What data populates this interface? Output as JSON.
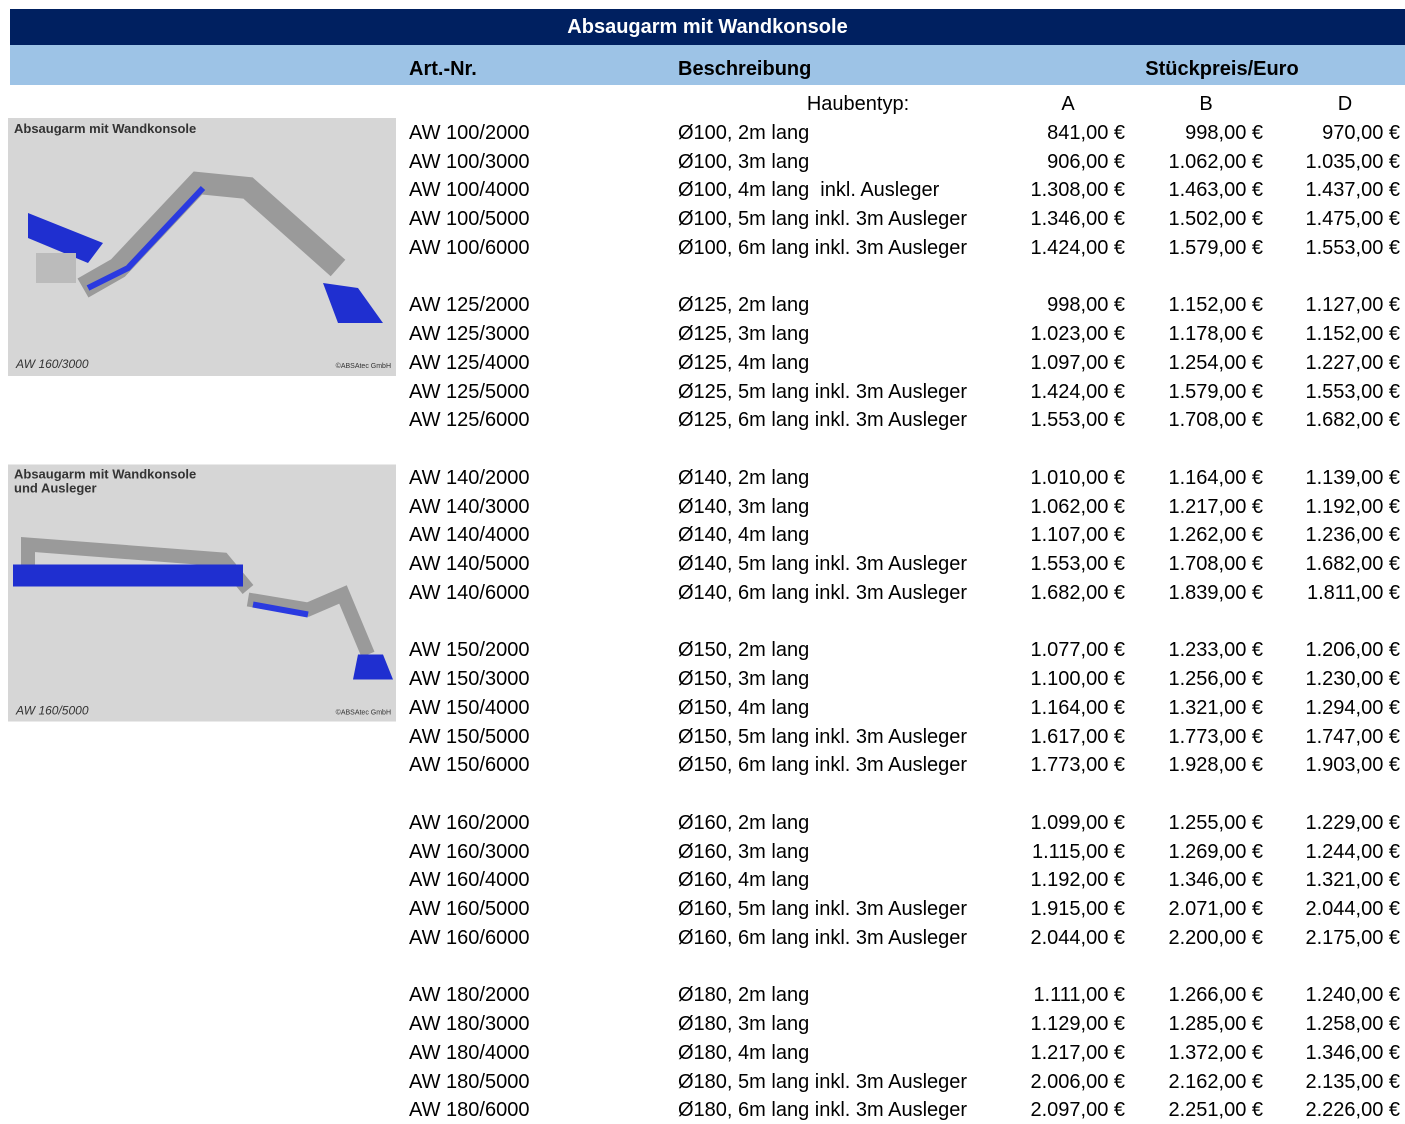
{
  "header": {
    "title": "Absaugarm mit Wandkonsole",
    "col_art": "Art.-Nr.",
    "col_desc": "Beschreibung",
    "col_price": "Stückpreis/Euro"
  },
  "hood": {
    "label": "Haubentyp:",
    "types": [
      "A",
      "B",
      "D"
    ]
  },
  "images": [
    {
      "caption": [
        "Absaugarm mit Wandkonsole"
      ],
      "model": "AW 160/3000",
      "credit": "©ABSAtec GmbH"
    },
    {
      "caption": [
        "Absaugarm mit Wandkonsole",
        "und Ausleger"
      ],
      "model": "AW 160/5000",
      "credit": "©ABSAtec GmbH"
    }
  ],
  "groups": [
    {
      "rows": [
        [
          "AW 100/2000",
          "Ø100, 2m lang",
          "841,00 €",
          "998,00 €",
          "970,00 €"
        ],
        [
          "AW 100/3000",
          "Ø100, 3m lang",
          "906,00 €",
          "1.062,00 €",
          "1.035,00 €"
        ],
        [
          "AW 100/4000",
          "Ø100, 4m lang  inkl. Ausleger",
          "1.308,00 €",
          "1.463,00 €",
          "1.437,00 €"
        ],
        [
          "AW 100/5000",
          "Ø100, 5m lang inkl. 3m Ausleger",
          "1.346,00 €",
          "1.502,00 €",
          "1.475,00 €"
        ],
        [
          "AW 100/6000",
          "Ø100, 6m lang inkl. 3m Ausleger",
          "1.424,00 €",
          "1.579,00 €",
          "1.553,00 €"
        ]
      ]
    },
    {
      "rows": [
        [
          "AW 125/2000",
          "Ø125, 2m lang",
          "998,00 €",
          "1.152,00 €",
          "1.127,00 €"
        ],
        [
          "AW 125/3000",
          "Ø125, 3m lang",
          "1.023,00 €",
          "1.178,00 €",
          "1.152,00 €"
        ],
        [
          "AW 125/4000",
          "Ø125, 4m lang",
          "1.097,00 €",
          "1.254,00 €",
          "1.227,00 €"
        ],
        [
          "AW 125/5000",
          "Ø125, 5m lang inkl. 3m Ausleger",
          "1.424,00 €",
          "1.579,00 €",
          "1.553,00 €"
        ],
        [
          "AW 125/6000",
          "Ø125, 6m lang inkl. 3m Ausleger",
          "1.553,00 €",
          "1.708,00 €",
          "1.682,00 €"
        ]
      ]
    },
    {
      "rows": [
        [
          "AW 140/2000",
          "Ø140, 2m lang",
          "1.010,00 €",
          "1.164,00 €",
          "1.139,00 €"
        ],
        [
          "AW 140/3000",
          "Ø140, 3m lang",
          "1.062,00 €",
          "1.217,00 €",
          "1.192,00 €"
        ],
        [
          "AW 140/4000",
          "Ø140, 4m lang",
          "1.107,00 €",
          "1.262,00 €",
          "1.236,00 €"
        ],
        [
          "AW 140/5000",
          "Ø140, 5m lang inkl. 3m Ausleger",
          "1.553,00 €",
          "1.708,00 €",
          "1.682,00 €"
        ],
        [
          "AW 140/6000",
          "Ø140, 6m lang inkl. 3m Ausleger",
          "1.682,00 €",
          "1.839,00 €",
          "1.811,00 €"
        ]
      ]
    },
    {
      "rows": [
        [
          "AW 150/2000",
          "Ø150, 2m lang",
          "1.077,00 €",
          "1.233,00 €",
          "1.206,00 €"
        ],
        [
          "AW 150/3000",
          "Ø150, 3m lang",
          "1.100,00 €",
          "1.256,00 €",
          "1.230,00 €"
        ],
        [
          "AW 150/4000",
          "Ø150, 4m lang",
          "1.164,00 €",
          "1.321,00 €",
          "1.294,00 €"
        ],
        [
          "AW 150/5000",
          "Ø150, 5m lang inkl. 3m Ausleger",
          "1.617,00 €",
          "1.773,00 €",
          "1.747,00 €"
        ],
        [
          "AW 150/6000",
          "Ø150, 6m lang inkl. 3m Ausleger",
          "1.773,00 €",
          "1.928,00 €",
          "1.903,00 €"
        ]
      ]
    },
    {
      "rows": [
        [
          "AW 160/2000",
          "Ø160, 2m lang",
          "1.099,00 €",
          "1.255,00 €",
          "1.229,00 €"
        ],
        [
          "AW 160/3000",
          "Ø160, 3m lang",
          "1.115,00 €",
          "1.269,00 €",
          "1.244,00 €"
        ],
        [
          "AW 160/4000",
          "Ø160, 4m lang",
          "1.192,00 €",
          "1.346,00 €",
          "1.321,00 €"
        ],
        [
          "AW 160/5000",
          "Ø160, 5m lang inkl. 3m Ausleger",
          "1.915,00 €",
          "2.071,00 €",
          "2.044,00 €"
        ],
        [
          "AW 160/6000",
          "Ø160, 6m lang inkl. 3m Ausleger",
          "2.044,00 €",
          "2.200,00 €",
          "2.175,00 €"
        ]
      ]
    },
    {
      "rows": [
        [
          "AW 180/2000",
          "Ø180, 2m lang",
          "1.111,00 €",
          "1.266,00 €",
          "1.240,00 €"
        ],
        [
          "AW 180/3000",
          "Ø180, 3m lang",
          "1.129,00 €",
          "1.285,00 €",
          "1.258,00 €"
        ],
        [
          "AW 180/4000",
          "Ø180, 4m lang",
          "1.217,00 €",
          "1.372,00 €",
          "1.346,00 €"
        ],
        [
          "AW 180/5000",
          "Ø180, 5m lang inkl. 3m Ausleger",
          "2.006,00 €",
          "2.162,00 €",
          "2.135,00 €"
        ],
        [
          "AW 180/6000",
          "Ø180, 6m lang inkl. 3m Ausleger",
          "2.097,00 €",
          "2.251,00 €",
          "2.226,00 €"
        ]
      ]
    }
  ]
}
